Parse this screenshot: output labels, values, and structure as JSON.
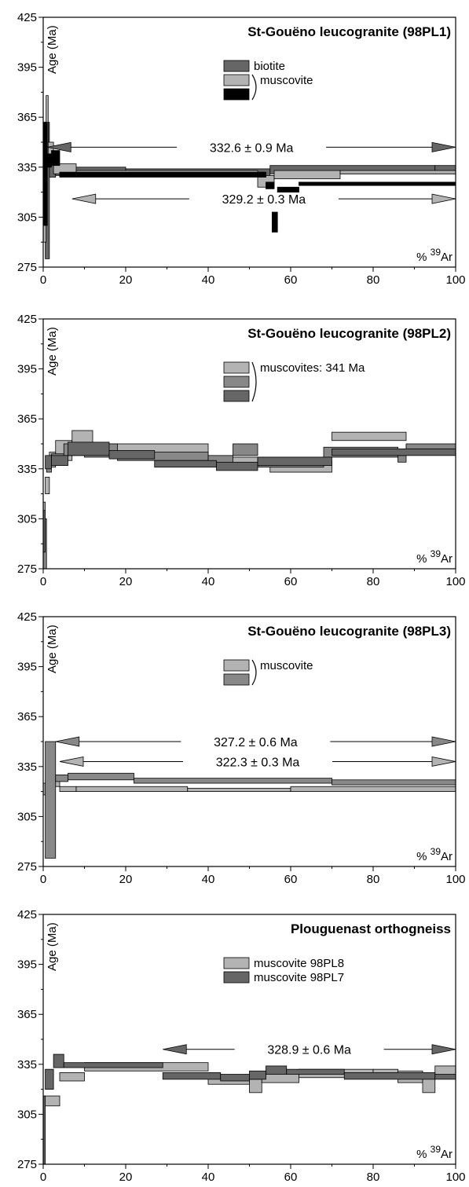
{
  "colors": {
    "biotite": "#666666",
    "muscovite_light": "#b3b3b3",
    "muscovite_dark": "#000000",
    "muscovite_mid": "#888888",
    "muscovite_dark2": "#666666",
    "frame": "#000000",
    "background": "#ffffff"
  },
  "chart_data": [
    {
      "type": "line",
      "title": "St-Gouëno leucogranite (98PL1)",
      "ylabel": "Age  (Ma)",
      "xlabel_prefix": "%",
      "xlabel_sup": "39",
      "xlabel_suffix": "Ar",
      "xlim": [
        0,
        100
      ],
      "ylim": [
        275,
        425
      ],
      "x_ticks": [
        0,
        20,
        40,
        60,
        80,
        100
      ],
      "y_ticks": [
        275,
        305,
        335,
        365,
        395,
        425
      ],
      "legend": [
        {
          "label": "biotite",
          "color_key": "biotite"
        },
        {
          "label": "muscovite",
          "color_key": "muscovite_light",
          "bracket": true
        },
        {
          "label": "",
          "color_key": "muscovite_dark",
          "bracket": true
        }
      ],
      "plateaus": [
        {
          "label": "332.6  ±  0.9  Ma",
          "x_start": 1,
          "x_end": 100,
          "y": 347,
          "color_key": "biotite"
        },
        {
          "label": "329.2  ±  0.3  Ma",
          "x_start": 7,
          "x_end": 100,
          "y": 316,
          "color_key": "muscovite_light"
        }
      ],
      "series": [
        {
          "name": "biotite",
          "color_key": "biotite",
          "steps": [
            [
              0,
              0.5,
              300,
              360
            ],
            [
              0.5,
              1.5,
              280,
              362
            ],
            [
              1.5,
              3,
              329,
              337
            ],
            [
              3,
              20,
              330,
              335
            ],
            [
              20,
              55,
              330,
              334
            ],
            [
              55,
              95,
              331,
              336
            ],
            [
              95,
              100,
              331,
              336
            ]
          ]
        },
        {
          "name": "muscovite",
          "color_key": "muscovite_light",
          "steps": [
            [
              0,
              0.7,
              290,
              350
            ],
            [
              0.7,
              1.2,
              340,
              378
            ],
            [
              1.2,
              2.5,
              338,
              350
            ],
            [
              2.5,
              8,
              331,
              337
            ],
            [
              8,
              52,
              330,
              333
            ],
            [
              52,
              56,
              323,
              330
            ],
            [
              56,
              72,
              328,
              333
            ],
            [
              72,
              100,
              331,
              333
            ]
          ]
        },
        {
          "name": "muscovite",
          "color_key": "muscovite_dark",
          "steps": [
            [
              0,
              1,
              300,
              362
            ],
            [
              1,
              2,
              335,
              343
            ],
            [
              2,
              4,
              336,
              345
            ],
            [
              4,
              54,
              329,
              332
            ],
            [
              54,
              56,
              322,
              326
            ],
            [
              55.5,
              56.8,
              296,
              308
            ],
            [
              56.8,
              62,
              320,
              323
            ],
            [
              62,
              100,
              324,
              326
            ]
          ]
        }
      ]
    },
    {
      "type": "line",
      "title": "St-Gouëno leucogranite (98PL2)",
      "ylabel": "Age  (Ma)",
      "xlabel_prefix": "%",
      "xlabel_sup": "39",
      "xlabel_suffix": "Ar",
      "xlim": [
        0,
        100
      ],
      "ylim": [
        275,
        425
      ],
      "x_ticks": [
        0,
        20,
        40,
        60,
        80,
        100
      ],
      "y_ticks": [
        275,
        305,
        335,
        365,
        395,
        425
      ],
      "legend": [
        {
          "label": "muscovites:  341  Ma",
          "color_key": "muscovite_light",
          "bracket": true
        },
        {
          "label": "",
          "color_key": "muscovite_mid",
          "bracket": true
        },
        {
          "label": "",
          "color_key": "muscovite_dark2",
          "bracket": true
        }
      ],
      "plateaus": [],
      "series": [
        {
          "name": "muscovite",
          "color_key": "muscovite_light",
          "steps": [
            [
              0,
              0.5,
              280,
              315
            ],
            [
              0.5,
              1.5,
              320,
              330
            ],
            [
              1.5,
              3,
              336,
              345
            ],
            [
              3,
              7,
              340,
              352
            ],
            [
              7,
              12,
              350,
              358
            ],
            [
              12,
              40,
              343,
              350
            ],
            [
              40,
              55,
              337,
              342
            ],
            [
              55,
              70,
              333,
              340
            ],
            [
              70,
              88,
              352,
              357
            ],
            [
              88,
              100,
              344,
              349
            ]
          ]
        },
        {
          "name": "muscovite",
          "color_key": "muscovite_mid",
          "steps": [
            [
              0,
              0.8,
              275,
              305
            ],
            [
              0.8,
              2,
              333,
              340
            ],
            [
              2,
              5,
              338,
              344
            ],
            [
              5,
              10,
              343,
              350
            ],
            [
              10,
              18,
              342,
              350
            ],
            [
              18,
              40,
              340,
              345
            ],
            [
              40,
              46,
              338,
              343
            ],
            [
              46,
              52,
              343,
              350
            ],
            [
              52,
              68,
              336,
              342
            ],
            [
              68,
              86,
              342,
              348
            ],
            [
              86,
              88,
              339,
              343
            ],
            [
              88,
              100,
              346,
              350
            ]
          ]
        },
        {
          "name": "muscovite",
          "color_key": "muscovite_dark2",
          "steps": [
            [
              0,
              0.5,
              285,
              310
            ],
            [
              0.5,
              2,
              335,
              343
            ],
            [
              2,
              6,
              337,
              343
            ],
            [
              6,
              16,
              343,
              351
            ],
            [
              16,
              27,
              341,
              346
            ],
            [
              27,
              42,
              336,
              340
            ],
            [
              42,
              52,
              334,
              339
            ],
            [
              52,
              70,
              337,
              342
            ],
            [
              70,
              100,
              343,
              347
            ]
          ]
        }
      ]
    },
    {
      "type": "line",
      "title": "St-Gouëno leucogranite (98PL3)",
      "ylabel": "Age  (Ma)",
      "xlabel_prefix": "%",
      "xlabel_sup": "39",
      "xlabel_suffix": "Ar",
      "xlim": [
        0,
        100
      ],
      "ylim": [
        275,
        425
      ],
      "x_ticks": [
        0,
        20,
        40,
        60,
        80,
        100
      ],
      "y_ticks": [
        275,
        305,
        335,
        365,
        395,
        425
      ],
      "legend": [
        {
          "label": "muscovite",
          "color_key": "muscovite_light",
          "bracket": true
        },
        {
          "label": "",
          "color_key": "muscovite_mid",
          "bracket": true
        }
      ],
      "plateaus": [
        {
          "label": "327.2  ±  0.6  Ma",
          "x_start": 3,
          "x_end": 100,
          "y": 350,
          "color_key": "muscovite_mid"
        },
        {
          "label": "322.3  ±  0.3  Ma",
          "x_start": 4,
          "x_end": 100,
          "y": 338,
          "color_key": "muscovite_light"
        }
      ],
      "series": [
        {
          "name": "muscovite",
          "color_key": "muscovite_light",
          "steps": [
            [
              0,
              0.8,
              318,
              325
            ],
            [
              0.8,
              2.5,
              320,
              326
            ],
            [
              2.5,
              4,
              323,
              330
            ],
            [
              4,
              8,
              320,
              323
            ],
            [
              8,
              35,
              320,
              323
            ],
            [
              35,
              60,
              320,
              322
            ],
            [
              60,
              100,
              320,
              323
            ]
          ]
        },
        {
          "name": "muscovite",
          "color_key": "muscovite_mid",
          "steps": [
            [
              0.5,
              3,
              280,
              350
            ],
            [
              3,
              6,
              326,
              330
            ],
            [
              6,
              22,
              327,
              331
            ],
            [
              22,
              70,
              325,
              328
            ],
            [
              70,
              100,
              324,
              327
            ]
          ]
        }
      ]
    },
    {
      "type": "line",
      "title": "Plouguenast orthogneiss",
      "ylabel": "Age  (Ma)",
      "xlabel_prefix": "%",
      "xlabel_sup": "39",
      "xlabel_suffix": "Ar",
      "xlim": [
        0,
        100
      ],
      "ylim": [
        275,
        425
      ],
      "x_ticks": [
        0,
        20,
        40,
        60,
        80,
        100
      ],
      "y_ticks": [
        275,
        305,
        335,
        365,
        395,
        425
      ],
      "legend": [
        {
          "label": "muscovite  98PL8",
          "color_key": "muscovite_light"
        },
        {
          "label": "muscovite  98PL7",
          "color_key": "muscovite_dark2"
        }
      ],
      "plateaus": [
        {
          "label": "328.9  ±  0.6  Ma",
          "x_start": 29,
          "x_end": 100,
          "y": 344,
          "color_key": "muscovite_dark2"
        }
      ],
      "series": [
        {
          "name": "muscovite  98PL8",
          "color_key": "muscovite_light",
          "steps": [
            [
              0,
              0.3,
              285,
              312
            ],
            [
              0.3,
              4,
              310,
              316
            ],
            [
              4,
              10,
              325,
              330
            ],
            [
              10,
              40,
              331,
              336
            ],
            [
              40,
              50,
              323,
              328
            ],
            [
              50,
              53,
              318,
              326
            ],
            [
              53,
              62,
              324,
              330
            ],
            [
              62,
              80,
              327,
              332
            ],
            [
              80,
              86,
              327,
              332
            ],
            [
              86,
              92,
              324,
              331
            ],
            [
              92,
              95,
              318,
              328
            ],
            [
              95,
              100,
              328,
              334
            ]
          ]
        },
        {
          "name": "muscovite  98PL7",
          "color_key": "muscovite_dark2",
          "steps": [
            [
              0,
              0.5,
              275,
              316
            ],
            [
              0.5,
              2.5,
              320,
              332
            ],
            [
              2.5,
              5,
              333,
              341
            ],
            [
              5,
              29,
              333,
              336
            ],
            [
              29,
              43,
              326,
              330
            ],
            [
              43,
              50,
              325,
              329
            ],
            [
              50,
              54,
              326,
              331
            ],
            [
              54,
              59,
              329,
              334
            ],
            [
              59,
              73,
              329,
              332
            ],
            [
              73,
              95,
              326,
              330
            ],
            [
              95,
              100,
              326,
              329
            ]
          ]
        }
      ]
    }
  ]
}
